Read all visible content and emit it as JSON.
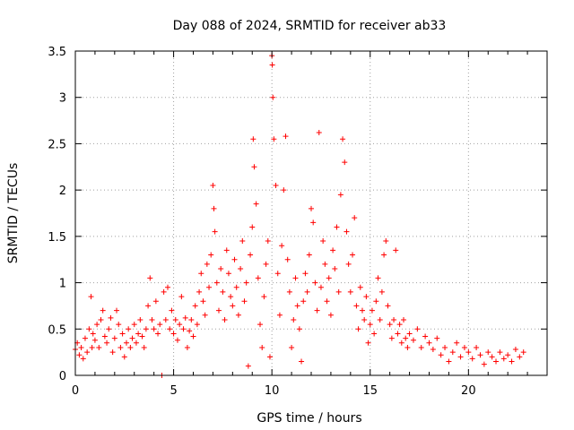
{
  "chart_data": {
    "type": "scatter",
    "title": "Day 088 of 2024, SRMTID for receiver ab33",
    "xlabel": "GPS time / hours",
    "ylabel": "SRMTID / TECUs",
    "xlim": [
      0,
      24
    ],
    "ylim": [
      0,
      3.5
    ],
    "x_ticks": [
      0,
      5,
      10,
      15,
      20
    ],
    "y_ticks": [
      0,
      0.5,
      1,
      1.5,
      2,
      2.5,
      3,
      3.5
    ],
    "x_tick_labels": [
      "0",
      "5",
      "10",
      "15",
      "20"
    ],
    "y_tick_labels": [
      "0",
      "0.5",
      "1",
      "1.5",
      "2",
      "2.5",
      "3",
      "3.5"
    ],
    "grid": true,
    "marker": "+",
    "series": [
      {
        "name": "SRMTID",
        "color": "#ff0000",
        "points": [
          [
            0.0,
            0.28
          ],
          [
            0.1,
            0.35
          ],
          [
            0.2,
            0.22
          ],
          [
            0.3,
            0.3
          ],
          [
            0.4,
            0.18
          ],
          [
            0.5,
            0.4
          ],
          [
            0.6,
            0.25
          ],
          [
            0.7,
            0.5
          ],
          [
            0.8,
            0.85
          ],
          [
            0.85,
            0.3
          ],
          [
            0.9,
            0.45
          ],
          [
            1.0,
            0.38
          ],
          [
            1.1,
            0.55
          ],
          [
            1.2,
            0.3
          ],
          [
            1.3,
            0.6
          ],
          [
            1.4,
            0.7
          ],
          [
            1.5,
            0.42
          ],
          [
            1.6,
            0.35
          ],
          [
            1.7,
            0.5
          ],
          [
            1.8,
            0.62
          ],
          [
            1.9,
            0.25
          ],
          [
            2.0,
            0.4
          ],
          [
            2.1,
            0.7
          ],
          [
            2.2,
            0.55
          ],
          [
            2.3,
            0.3
          ],
          [
            2.4,
            0.45
          ],
          [
            2.5,
            0.2
          ],
          [
            2.6,
            0.35
          ],
          [
            2.7,
            0.5
          ],
          [
            2.8,
            0.3
          ],
          [
            2.9,
            0.4
          ],
          [
            3.0,
            0.55
          ],
          [
            3.1,
            0.35
          ],
          [
            3.2,
            0.45
          ],
          [
            3.3,
            0.6
          ],
          [
            3.4,
            0.42
          ],
          [
            3.5,
            0.3
          ],
          [
            3.6,
            0.5
          ],
          [
            3.7,
            0.75
          ],
          [
            3.8,
            1.05
          ],
          [
            3.9,
            0.6
          ],
          [
            4.0,
            0.5
          ],
          [
            4.1,
            0.8
          ],
          [
            4.2,
            0.45
          ],
          [
            4.3,
            0.55
          ],
          [
            4.4,
            0.0
          ],
          [
            4.5,
            0.9
          ],
          [
            4.6,
            0.6
          ],
          [
            4.7,
            0.95
          ],
          [
            4.8,
            0.5
          ],
          [
            4.9,
            0.7
          ],
          [
            5.0,
            0.45
          ],
          [
            5.1,
            0.6
          ],
          [
            5.2,
            0.38
          ],
          [
            5.3,
            0.55
          ],
          [
            5.4,
            0.85
          ],
          [
            5.5,
            0.5
          ],
          [
            5.6,
            0.62
          ],
          [
            5.7,
            0.3
          ],
          [
            5.8,
            0.48
          ],
          [
            5.9,
            0.6
          ],
          [
            6.0,
            0.42
          ],
          [
            6.1,
            0.75
          ],
          [
            6.2,
            0.55
          ],
          [
            6.3,
            0.9
          ],
          [
            6.4,
            1.1
          ],
          [
            6.5,
            0.8
          ],
          [
            6.6,
            0.65
          ],
          [
            6.7,
            1.2
          ],
          [
            6.8,
            0.95
          ],
          [
            6.9,
            1.3
          ],
          [
            7.0,
            2.05
          ],
          [
            7.05,
            1.8
          ],
          [
            7.1,
            1.55
          ],
          [
            7.2,
            1.0
          ],
          [
            7.3,
            0.7
          ],
          [
            7.4,
            1.15
          ],
          [
            7.5,
            0.9
          ],
          [
            7.6,
            0.6
          ],
          [
            7.7,
            1.35
          ],
          [
            7.8,
            1.1
          ],
          [
            7.9,
            0.85
          ],
          [
            8.0,
            0.75
          ],
          [
            8.1,
            1.25
          ],
          [
            8.2,
            0.95
          ],
          [
            8.3,
            0.65
          ],
          [
            8.4,
            1.15
          ],
          [
            8.5,
            1.45
          ],
          [
            8.6,
            0.8
          ],
          [
            8.7,
            1.0
          ],
          [
            8.8,
            0.1
          ],
          [
            8.9,
            1.3
          ],
          [
            9.0,
            1.6
          ],
          [
            9.05,
            2.55
          ],
          [
            9.1,
            2.25
          ],
          [
            9.2,
            1.85
          ],
          [
            9.3,
            1.05
          ],
          [
            9.4,
            0.55
          ],
          [
            9.5,
            0.3
          ],
          [
            9.6,
            0.85
          ],
          [
            9.7,
            1.2
          ],
          [
            9.8,
            1.45
          ],
          [
            9.9,
            0.2
          ],
          [
            10.0,
            3.45
          ],
          [
            10.02,
            3.35
          ],
          [
            10.05,
            3.0
          ],
          [
            10.1,
            2.55
          ],
          [
            10.2,
            2.05
          ],
          [
            10.3,
            1.1
          ],
          [
            10.4,
            0.65
          ],
          [
            10.5,
            1.4
          ],
          [
            10.6,
            2.0
          ],
          [
            10.7,
            2.58
          ],
          [
            10.8,
            1.25
          ],
          [
            10.9,
            0.9
          ],
          [
            11.0,
            0.3
          ],
          [
            11.1,
            0.6
          ],
          [
            11.2,
            1.05
          ],
          [
            11.3,
            0.75
          ],
          [
            11.4,
            0.5
          ],
          [
            11.5,
            0.15
          ],
          [
            11.6,
            0.8
          ],
          [
            11.7,
            1.1
          ],
          [
            11.8,
            0.9
          ],
          [
            11.9,
            1.3
          ],
          [
            12.0,
            1.8
          ],
          [
            12.1,
            1.65
          ],
          [
            12.2,
            1.0
          ],
          [
            12.3,
            0.7
          ],
          [
            12.4,
            2.62
          ],
          [
            12.5,
            0.95
          ],
          [
            12.6,
            1.45
          ],
          [
            12.7,
            1.2
          ],
          [
            12.8,
            0.8
          ],
          [
            12.9,
            1.05
          ],
          [
            13.0,
            0.65
          ],
          [
            13.1,
            1.35
          ],
          [
            13.2,
            1.15
          ],
          [
            13.3,
            1.6
          ],
          [
            13.4,
            0.9
          ],
          [
            13.5,
            1.95
          ],
          [
            13.6,
            2.55
          ],
          [
            13.7,
            2.3
          ],
          [
            13.8,
            1.55
          ],
          [
            13.9,
            1.2
          ],
          [
            14.0,
            0.9
          ],
          [
            14.1,
            1.3
          ],
          [
            14.2,
            1.7
          ],
          [
            14.3,
            0.75
          ],
          [
            14.4,
            0.5
          ],
          [
            14.5,
            0.95
          ],
          [
            14.6,
            0.7
          ],
          [
            14.7,
            0.6
          ],
          [
            14.8,
            0.85
          ],
          [
            14.9,
            0.35
          ],
          [
            15.0,
            0.55
          ],
          [
            15.1,
            0.7
          ],
          [
            15.2,
            0.45
          ],
          [
            15.3,
            0.8
          ],
          [
            15.4,
            1.05
          ],
          [
            15.5,
            0.6
          ],
          [
            15.6,
            0.9
          ],
          [
            15.7,
            1.3
          ],
          [
            15.8,
            1.45
          ],
          [
            15.9,
            0.75
          ],
          [
            16.0,
            0.55
          ],
          [
            16.1,
            0.4
          ],
          [
            16.2,
            0.6
          ],
          [
            16.3,
            1.35
          ],
          [
            16.4,
            0.45
          ],
          [
            16.5,
            0.55
          ],
          [
            16.6,
            0.35
          ],
          [
            16.7,
            0.6
          ],
          [
            16.8,
            0.4
          ],
          [
            16.9,
            0.3
          ],
          [
            17.0,
            0.45
          ],
          [
            17.2,
            0.38
          ],
          [
            17.4,
            0.5
          ],
          [
            17.6,
            0.3
          ],
          [
            17.8,
            0.42
          ],
          [
            18.0,
            0.35
          ],
          [
            18.2,
            0.28
          ],
          [
            18.4,
            0.4
          ],
          [
            18.6,
            0.22
          ],
          [
            18.8,
            0.3
          ],
          [
            19.0,
            0.15
          ],
          [
            19.2,
            0.25
          ],
          [
            19.4,
            0.35
          ],
          [
            19.6,
            0.2
          ],
          [
            19.8,
            0.3
          ],
          [
            20.0,
            0.25
          ],
          [
            20.2,
            0.18
          ],
          [
            20.4,
            0.3
          ],
          [
            20.6,
            0.22
          ],
          [
            20.8,
            0.12
          ],
          [
            21.0,
            0.25
          ],
          [
            21.2,
            0.2
          ],
          [
            21.4,
            0.15
          ],
          [
            21.6,
            0.25
          ],
          [
            21.8,
            0.18
          ],
          [
            22.0,
            0.22
          ],
          [
            22.2,
            0.15
          ],
          [
            22.4,
            0.28
          ],
          [
            22.6,
            0.2
          ],
          [
            22.8,
            0.25
          ]
        ]
      }
    ]
  }
}
